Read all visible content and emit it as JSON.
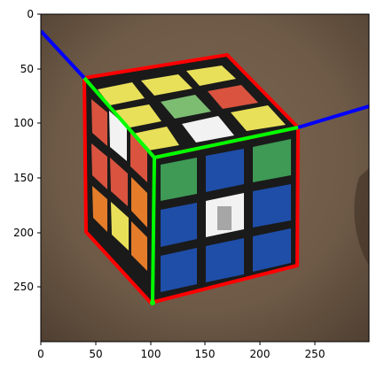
{
  "figure": {
    "x_ticks": [
      "0",
      "50",
      "100",
      "150",
      "200",
      "250"
    ],
    "y_ticks": [
      "0",
      "50",
      "100",
      "150",
      "200",
      "250"
    ]
  },
  "colors": {
    "background_wood": "#6e5a47",
    "cube_frame": "#1a1a1a",
    "white": "#f2f2f2",
    "yellow": "#e9e05a",
    "red": "#d9533f",
    "green": "#3e9a55",
    "light_green": "#7cbd72",
    "blue": "#1f4ea8",
    "orange": "#e47c2a",
    "overlay_red": "#ff0000",
    "overlay_green": "#00ff00",
    "overlay_blue": "#0000ff"
  }
}
